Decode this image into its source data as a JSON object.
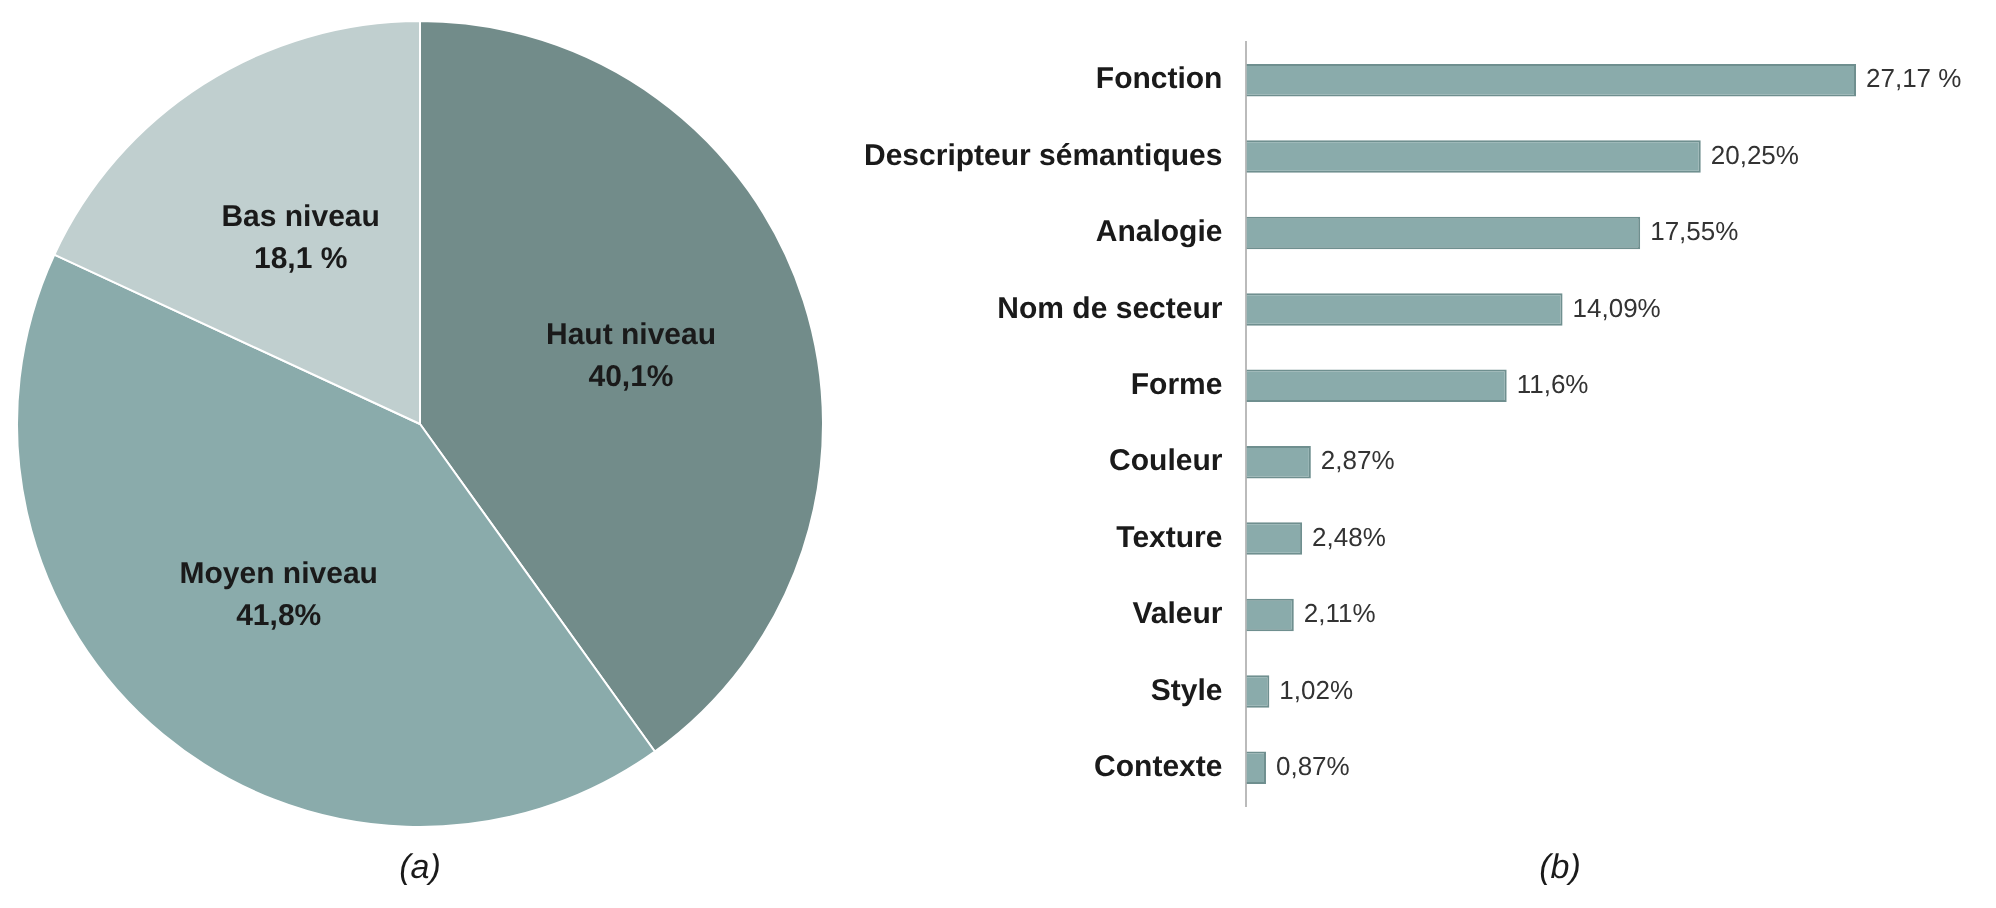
{
  "chart_data": [
    {
      "type": "pie",
      "categories": [
        "Haut niveau",
        "Moyen niveau",
        "Bas niveau"
      ],
      "values": [
        40.1,
        41.8,
        18.1
      ],
      "colors": [
        "#728c8a",
        "#8aabab",
        "#c0cfcf"
      ],
      "value_labels": [
        "40,1%",
        "41,8%",
        "18,1 %"
      ],
      "legend": false,
      "annotations": [
        "(a)"
      ]
    },
    {
      "type": "bar",
      "orientation": "horizontal",
      "categories": [
        "Fonction",
        "Descripteur sémantiques",
        "Analogie",
        "Nom de secteur",
        "Forme",
        "Couleur",
        "Texture",
        "Valeur",
        "Style",
        "Contexte"
      ],
      "values": [
        27.17,
        20.25,
        17.55,
        14.09,
        11.6,
        2.87,
        2.48,
        2.11,
        1.02,
        0.87
      ],
      "color": "#8aabab",
      "value_labels": [
        "27,17 %",
        "20,25%",
        "17,55%",
        "14,09%",
        "11,6%",
        "2,87%",
        "2,48%",
        "2,11%",
        "1,02%",
        "0,87%"
      ],
      "legend": false,
      "annotations": [
        "(b)"
      ]
    }
  ]
}
